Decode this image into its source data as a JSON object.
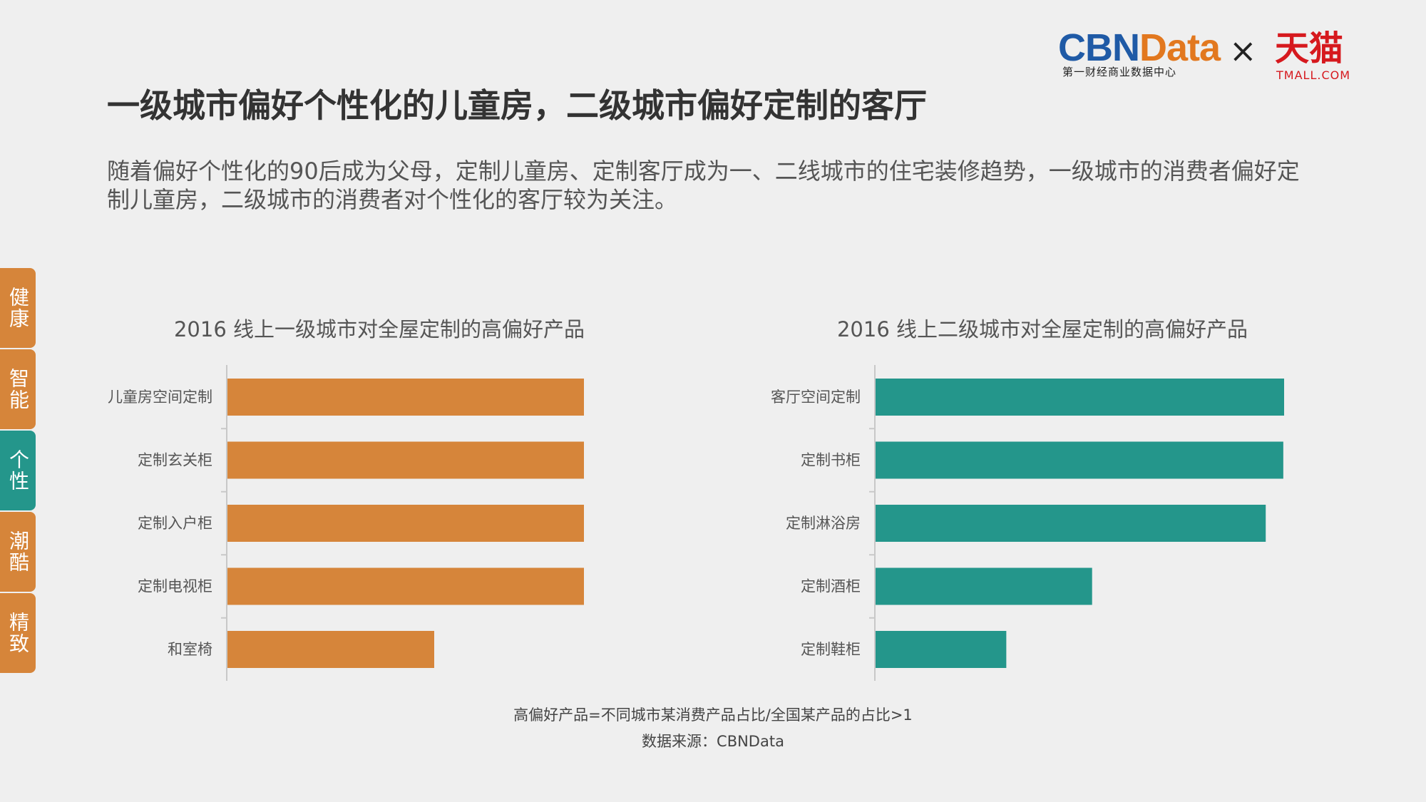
{
  "brand": {
    "cbn_part1": "CBN",
    "cbn_part2": "Data",
    "cbn_subtitle": "第一财经商业数据中心",
    "times": "×",
    "tmall": "天猫",
    "tmall_subtitle": "TMALL.COM"
  },
  "title": "一级城市偏好个性化的儿童房，二级城市偏好定制的客厅",
  "intro": "随着偏好个性化的90后成为父母，定制儿童房、定制客厅成为一、二线城市的住宅装修趋势，一级城市的消费者偏好定制儿童房，二级城市的消费者对个性化的客厅较为关注。",
  "side_nav": [
    {
      "label": "健康",
      "active": false
    },
    {
      "label": "智能",
      "active": false
    },
    {
      "label": "个性",
      "active": true
    },
    {
      "label": "潮酷",
      "active": false
    },
    {
      "label": "精致",
      "active": false
    }
  ],
  "colors": {
    "orange": "#d6853a",
    "teal": "#24968b"
  },
  "chart_data": [
    {
      "type": "bar",
      "orientation": "horizontal",
      "title": "2016 线上一级城市对全屋定制的高偏好产品",
      "categories": [
        "儿童房空间定制",
        "定制玄关柜",
        "定制入户柜",
        "定制电视柜",
        "和室椅"
      ],
      "values": [
        100,
        100,
        100,
        100,
        58
      ],
      "xlim": [
        0,
        100
      ],
      "color": "#d6853a"
    },
    {
      "type": "bar",
      "orientation": "horizontal",
      "title": "2016 线上二级城市对全屋定制的高偏好产品",
      "categories": [
        "客厅空间定制",
        "定制书柜",
        "定制淋浴房",
        "定制酒柜",
        "定制鞋柜"
      ],
      "values": [
        100,
        99.8,
        95.5,
        53,
        32
      ],
      "xlim": [
        0,
        100
      ],
      "color": "#24968b"
    }
  ],
  "footnote": {
    "definition": "高偏好产品=不同城市某消费产品占比/全国某产品的占比>1",
    "source": "数据来源：CBNData"
  }
}
